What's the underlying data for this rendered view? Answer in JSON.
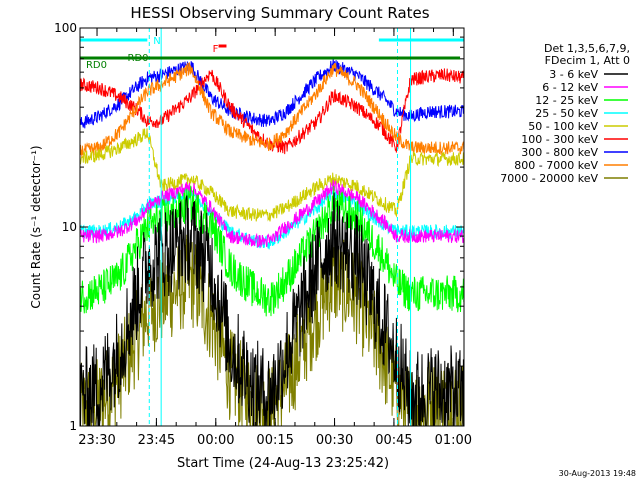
{
  "chart_data": {
    "type": "line",
    "title": "HESSI Observing Summary Count Rates",
    "xlabel": "Start Time (24-Aug-13 23:25:42)",
    "ylabel": "Count Rate (s⁻¹ detector⁻¹)",
    "x_ticks": [
      "23:30",
      "23:45",
      "00:00",
      "00:15",
      "00:30",
      "00:45",
      "01:00"
    ],
    "x_tick_minutes": [
      4.3,
      19.3,
      34.3,
      49.3,
      64.3,
      79.3,
      94.3
    ],
    "xlim_minutes": [
      0,
      97
    ],
    "y_scale": "log",
    "ylim": [
      1,
      100
    ],
    "y_tick_labels": [
      "1",
      "10",
      "100"
    ],
    "legend_header": [
      "Det 1,3,5,6,7,9,",
      "FDecim 1, Att 0"
    ],
    "legend_position": "right",
    "footer_date": "30-Aug-2013 19:48",
    "flag_labels": {
      "N": "N",
      "F": "F",
      "RD0": "RD0"
    },
    "flag_colors": {
      "N": "#00ffff",
      "F": "#ff0000",
      "RD0": "#007f00"
    },
    "flag_bars": {
      "N": [
        [
          0,
          17
        ],
        [
          75.5,
          97
        ]
      ],
      "F": [
        [
          35,
          37
        ]
      ],
      "RD0": [
        [
          0,
          96
        ]
      ]
    },
    "gaps_minutes": [
      [
        17.5,
        20.5
      ],
      [
        80.2,
        83.5
      ]
    ],
    "series": [
      {
        "name": "3 - 6 keV",
        "color": "#000000",
        "x": [
          0,
          5,
          10,
          15,
          17,
          20.5,
          28,
          33,
          38,
          44,
          48,
          52,
          60,
          64,
          70,
          76,
          80,
          83.5,
          88,
          92,
          97
        ],
        "y": [
          1.4,
          1.6,
          2.4,
          5,
          6.5,
          7.4,
          8.8,
          6.5,
          2.5,
          1.6,
          1.4,
          2.3,
          6.5,
          8.8,
          6.8,
          3.5,
          2.2,
          1.4,
          1.5,
          1.5,
          1.4
        ]
      },
      {
        "name": "6 - 12 keV",
        "color": "#ff00ff",
        "x": [
          0,
          5,
          10,
          15,
          17,
          20.5,
          28,
          33,
          38,
          44,
          48,
          52,
          60,
          64,
          70,
          76,
          80,
          83.5,
          88,
          92,
          97
        ],
        "y": [
          9,
          9,
          9.5,
          11,
          12.5,
          14,
          16,
          12.5,
          9,
          8.5,
          8.5,
          10,
          13.5,
          16,
          14,
          11,
          9,
          9,
          9,
          9,
          9
        ]
      },
      {
        "name": "12 - 25 keV",
        "color": "#00ff00",
        "x": [
          0,
          5,
          10,
          15,
          17,
          20.5,
          28,
          33,
          38,
          44,
          48,
          52,
          60,
          64,
          70,
          76,
          80,
          83.5,
          88,
          92,
          97
        ],
        "y": [
          4.5,
          4.8,
          5.6,
          8.5,
          10,
          11,
          13,
          10.5,
          6.2,
          4.8,
          4.3,
          5.4,
          9.4,
          13,
          11,
          7.5,
          5.2,
          4.6,
          4.6,
          4.6,
          4.6
        ]
      },
      {
        "name": "25 - 50 keV",
        "color": "#00ffff",
        "x": [
          0,
          5,
          10,
          15,
          17,
          20.5,
          28,
          33,
          38,
          44,
          48,
          52,
          60,
          64,
          70,
          76,
          80,
          83.5,
          88,
          92,
          97
        ],
        "y": [
          9.5,
          9.5,
          10,
          11.5,
          13,
          13.5,
          15,
          12,
          9.5,
          8.5,
          8.3,
          9.5,
          12.5,
          15,
          13,
          10.5,
          9.5,
          9.5,
          9.5,
          9.5,
          9.5
        ]
      },
      {
        "name": "50 - 100 keV",
        "color": "#cccc00",
        "x": [
          0,
          5,
          10,
          15,
          17,
          20.5,
          28,
          33,
          38,
          44,
          48,
          52,
          60,
          64,
          70,
          76,
          80,
          83.5,
          88,
          92,
          97
        ],
        "y": [
          22,
          23,
          25,
          28,
          30,
          16,
          17.5,
          15,
          12,
          11.5,
          11.5,
          12.5,
          16,
          17.5,
          16,
          13.5,
          12,
          22,
          22,
          22,
          22
        ]
      },
      {
        "name": "100 - 300 keV",
        "color": "#ff0000",
        "x": [
          0,
          5,
          10,
          15,
          17,
          20.5,
          28,
          33,
          38,
          44,
          48,
          52,
          60,
          64,
          70,
          76,
          80,
          83.5,
          88,
          92,
          97
        ],
        "y": [
          52,
          50,
          45,
          38,
          34,
          34,
          45,
          60,
          40,
          30,
          26,
          25,
          34,
          46,
          40,
          32,
          25,
          55,
          57,
          58,
          56
        ]
      },
      {
        "name": "300 - 800 keV",
        "color": "#0000ff",
        "x": [
          0,
          5,
          10,
          15,
          17,
          20.5,
          28,
          33,
          38,
          44,
          48,
          52,
          60,
          64,
          70,
          76,
          80,
          83.5,
          88,
          92,
          97
        ],
        "y": [
          33,
          36,
          42,
          52,
          56,
          58,
          65,
          45,
          38,
          35,
          34,
          38,
          56,
          65,
          58,
          46,
          38,
          36,
          38,
          38,
          38
        ]
      },
      {
        "name": "800 - 7000 keV",
        "color": "#ff7f00",
        "x": [
          0,
          5,
          10,
          15,
          17,
          20.5,
          28,
          33,
          38,
          44,
          48,
          52,
          60,
          64,
          70,
          76,
          80,
          83.5,
          88,
          92,
          97
        ],
        "y": [
          24,
          25,
          30,
          42,
          48,
          52,
          63,
          38,
          30,
          27,
          26,
          30,
          48,
          63,
          52,
          36,
          28,
          25,
          25,
          25,
          25
        ]
      },
      {
        "name": "7000 - 20000 keV",
        "color": "#7f7f00",
        "x": [
          0,
          5,
          10,
          15,
          17,
          20.5,
          28,
          33,
          38,
          44,
          48,
          52,
          60,
          64,
          70,
          76,
          80,
          83.5,
          88,
          92,
          97
        ],
        "y": [
          1.2,
          1.3,
          1.8,
          3,
          3.8,
          4.3,
          5.5,
          3.6,
          1.8,
          1.3,
          1.2,
          1.6,
          3.8,
          5.5,
          4.4,
          2.4,
          1.5,
          1.2,
          1.3,
          1.3,
          1.3
        ]
      }
    ]
  }
}
